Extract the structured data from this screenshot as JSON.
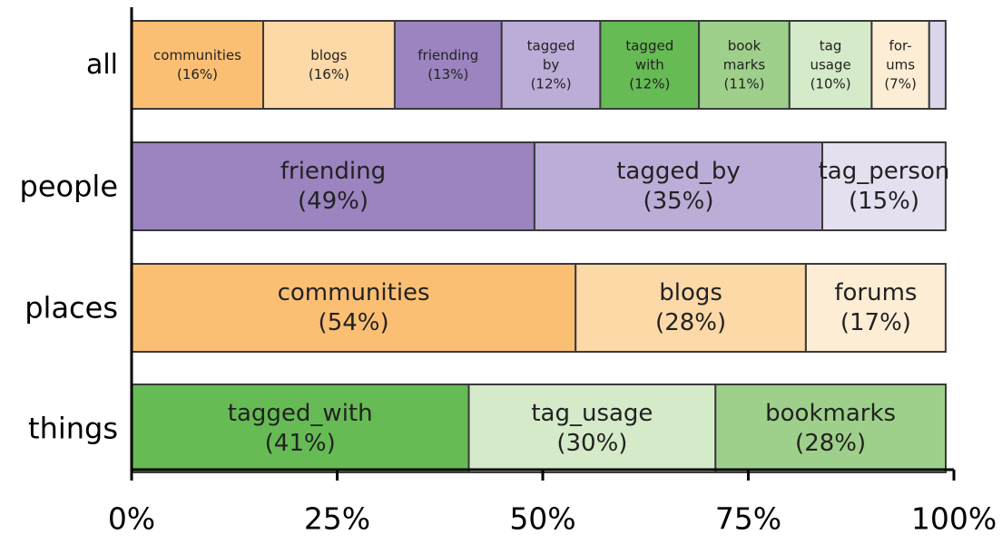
{
  "chart_data": {
    "type": "bar",
    "orientation": "horizontal",
    "stacked": true,
    "title": "",
    "xlabel": "",
    "ylabel": "",
    "xlim": [
      0,
      100
    ],
    "x_ticks": [
      "0%",
      "25%",
      "50%",
      "75%",
      "100%"
    ],
    "grid": false,
    "legend": "none",
    "categories": [
      "all",
      "people",
      "places",
      "things"
    ],
    "rows": [
      {
        "category": "all",
        "segments": [
          {
            "lines": [
              "communities",
              "(16%)"
            ],
            "value": 16,
            "color": "#fbbf74"
          },
          {
            "lines": [
              "blogs",
              "(16%)"
            ],
            "value": 16,
            "color": "#fdd9a8"
          },
          {
            "lines": [
              "friending",
              "(13%)"
            ],
            "value": 13,
            "color": "#9b84bf"
          },
          {
            "lines": [
              "tagged",
              "by",
              "(12%)"
            ],
            "value": 12,
            "color": "#bcadd8"
          },
          {
            "lines": [
              "tagged",
              "with",
              "(12%)"
            ],
            "value": 12,
            "color": "#66bb55"
          },
          {
            "lines": [
              "book",
              "marks",
              "(11%)"
            ],
            "value": 11,
            "color": "#9fd08b"
          },
          {
            "lines": [
              "tag",
              "usage",
              "(10%)"
            ],
            "value": 10,
            "color": "#d5eac9"
          },
          {
            "lines": [
              "for-",
              "ums",
              "(7%)"
            ],
            "value": 7,
            "color": "#feedd5"
          },
          {
            "lines": [],
            "value": 2,
            "color": "#dcd6ec"
          }
        ]
      },
      {
        "category": "people",
        "segments": [
          {
            "lines": [
              "friending",
              "(49%)"
            ],
            "value": 49,
            "color": "#9b84bf"
          },
          {
            "lines": [
              "tagged_by",
              "(35%)"
            ],
            "value": 35,
            "color": "#bcadd8"
          },
          {
            "lines": [
              "tag_person",
              "(15%)"
            ],
            "value": 15,
            "color": "#e4e0ef"
          }
        ]
      },
      {
        "category": "places",
        "segments": [
          {
            "lines": [
              "communities",
              "(54%)"
            ],
            "value": 54,
            "color": "#fbbf74"
          },
          {
            "lines": [
              "blogs",
              "(28%)"
            ],
            "value": 28,
            "color": "#fdd9a8"
          },
          {
            "lines": [
              "forums",
              "(17%)"
            ],
            "value": 17,
            "color": "#feedd5"
          }
        ]
      },
      {
        "category": "things",
        "segments": [
          {
            "lines": [
              "tagged_with",
              "(41%)"
            ],
            "value": 41,
            "color": "#66bb55"
          },
          {
            "lines": [
              "tag_usage",
              "(30%)"
            ],
            "value": 30,
            "color": "#d5eac9"
          },
          {
            "lines": [
              "bookmarks",
              "(28%)"
            ],
            "value": 28,
            "color": "#9fd08b"
          }
        ]
      }
    ]
  }
}
